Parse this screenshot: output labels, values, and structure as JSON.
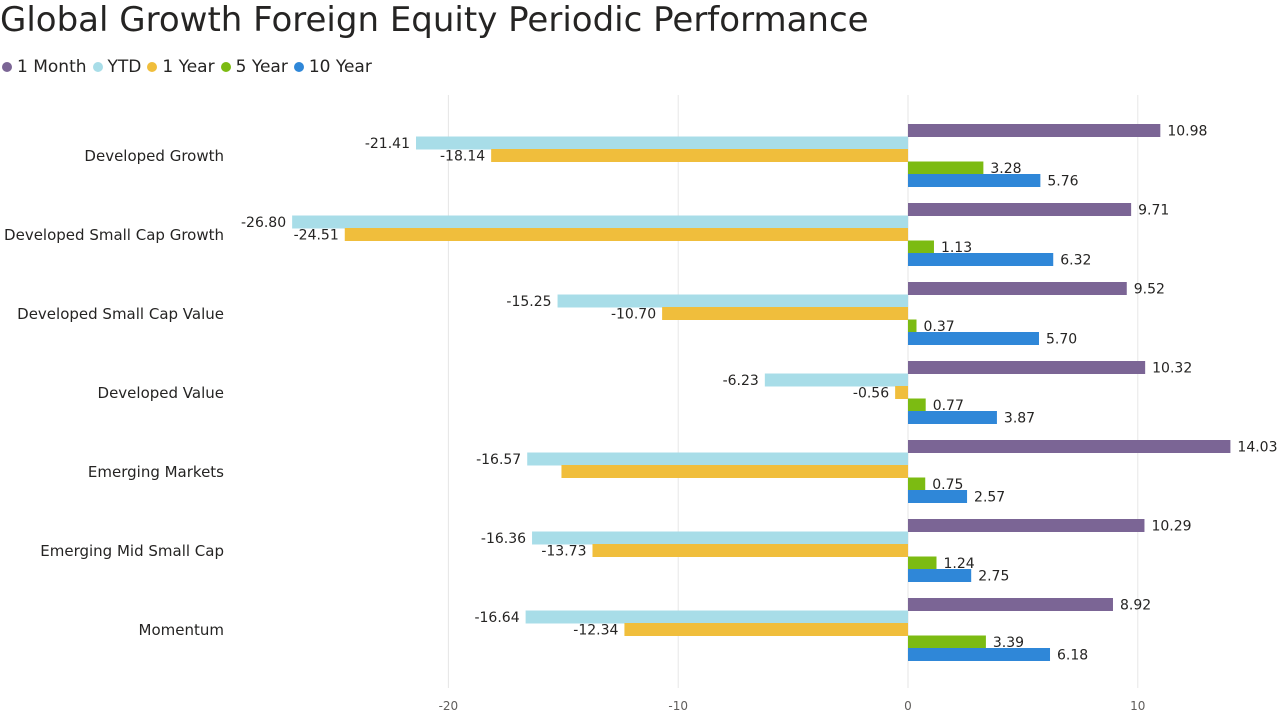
{
  "chart_data": {
    "type": "bar",
    "orientation": "horizontal",
    "title": "Global Growth Foreign Equity Periodic Performance",
    "legend_position": "top-left",
    "grid": true,
    "xlim": [
      -28,
      15
    ],
    "x_ticks": [
      "-20",
      "-10",
      "0",
      "10"
    ],
    "categories": [
      "Developed Growth",
      "Developed Small Cap Growth",
      "Developed Small Cap Value",
      "Developed Value",
      "Emerging Markets",
      "Emerging Mid Small Cap",
      "Momentum"
    ],
    "series": [
      {
        "name": "1 Month",
        "color": "#7b6595",
        "values": [
          10.98,
          9.71,
          9.52,
          10.32,
          14.03,
          10.29,
          8.92
        ]
      },
      {
        "name": "YTD",
        "color": "#a8dde8",
        "values": [
          -21.41,
          -26.8,
          -15.25,
          -6.23,
          -16.57,
          -16.36,
          -16.64
        ]
      },
      {
        "name": "1 Year",
        "color": "#f0be3c",
        "values": [
          -18.14,
          -24.51,
          -10.7,
          -0.56,
          -15.08,
          -13.73,
          -12.34
        ]
      },
      {
        "name": "5 Year",
        "color": "#7cbb12",
        "values": [
          3.28,
          1.13,
          0.37,
          0.77,
          0.75,
          1.24,
          3.39
        ]
      },
      {
        "name": "10 Year",
        "color": "#2f87d8",
        "values": [
          5.76,
          6.32,
          5.7,
          3.87,
          2.57,
          2.75,
          6.18
        ]
      }
    ],
    "value_labels": [
      [
        "10.98",
        "9.71",
        "9.52",
        "10.32",
        "14.03",
        "10.29",
        "8.92"
      ],
      [
        "-21.41",
        "-26.80",
        "-15.25",
        "-6.23",
        "-16.57",
        "-16.36",
        "-16.64"
      ],
      [
        "-18.14",
        "-24.51",
        "-10.70",
        "-0.56",
        "",
        "-13.73",
        "-12.34"
      ],
      [
        "3.28",
        "1.13",
        "0.37",
        "0.77",
        "0.75",
        "1.24",
        "3.39"
      ],
      [
        "5.76",
        "6.32",
        "5.70",
        "3.87",
        "2.57",
        "2.75",
        "6.18"
      ]
    ]
  }
}
